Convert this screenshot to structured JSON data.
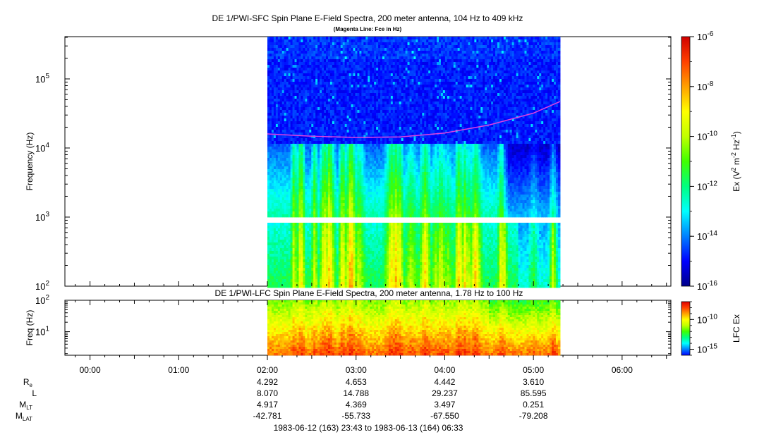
{
  "chart_data": [
    {
      "type": "heatmap",
      "title": "DE 1/PWI-SFC  Spin Plane E-Field Spectra, 200 meter antenna, 104 Hz to 409 kHz",
      "subtitle": "(Magenta Line: Fce in Hz)",
      "ylabel": "Frequency (Hz)",
      "y_scale": "log",
      "ylim": [
        100,
        409000
      ],
      "y_ticks": [
        {
          "value": 100,
          "base": "10",
          "exp": "2"
        },
        {
          "value": 1000,
          "base": "10",
          "exp": "3"
        },
        {
          "value": 10000,
          "base": "10",
          "exp": "4"
        },
        {
          "value": 100000,
          "base": "10",
          "exp": "5"
        }
      ],
      "data_time_range": [
        "02:00",
        "05:18"
      ],
      "fce_line": {
        "color": "#e040e0",
        "points": [
          {
            "t": "02:00",
            "f": 16000
          },
          {
            "t": "02:30",
            "f": 14800
          },
          {
            "t": "03:00",
            "f": 14200
          },
          {
            "t": "03:30",
            "f": 14500
          },
          {
            "t": "04:00",
            "f": 16500
          },
          {
            "t": "04:30",
            "f": 21500
          },
          {
            "t": "05:00",
            "f": 32000
          },
          {
            "t": "05:18",
            "f": 47000
          }
        ]
      },
      "colorbar": {
        "label_prefix": "Ex (V",
        "label_mid": " m",
        "label_mid2": " Hz",
        "label_suffix": ")",
        "sup1": "2",
        "sup2": "-2",
        "sup3": "-1",
        "scale": "log",
        "range": [
          1e-16,
          1e-06
        ],
        "ticks": [
          {
            "value": 1e-06,
            "base": "10",
            "exp": "-6"
          },
          {
            "value": 1e-08,
            "base": "10",
            "exp": "-8"
          },
          {
            "value": 1e-10,
            "base": "10",
            "exp": "-10"
          },
          {
            "value": 1e-12,
            "base": "10",
            "exp": "-12"
          },
          {
            "value": 1e-14,
            "base": "10",
            "exp": "-14"
          },
          {
            "value": 1e-16,
            "base": "10",
            "exp": "-16"
          }
        ],
        "colors": [
          "#00008a",
          "#0000ff",
          "#0080ff",
          "#00ffff",
          "#00ff80",
          "#40ff00",
          "#c0ff00",
          "#ffff00",
          "#ffa000",
          "#ff4000",
          "#d00000"
        ]
      }
    },
    {
      "type": "heatmap",
      "title": "DE 1/PWI-LFC  Spin Plane E-Field Spectra, 200 meter antenna, 1.78 Hz to 100 Hz",
      "ylabel": "Freq (Hz)",
      "y_scale": "log",
      "ylim": [
        1.78,
        100
      ],
      "y_ticks": [
        {
          "value": 10,
          "base": "10",
          "exp": "1"
        },
        {
          "value": 100,
          "base": "10",
          "exp": "2"
        }
      ],
      "data_time_range": [
        "02:00",
        "05:18"
      ],
      "colorbar": {
        "label": "LFC Ex",
        "scale": "log",
        "range": [
          1e-16,
          1e-07
        ],
        "ticks": [
          {
            "value": 1e-10,
            "base": "10",
            "exp": "-10"
          },
          {
            "value": 1e-15,
            "base": "10",
            "exp": "-15"
          }
        ],
        "colors": [
          "#0000ff",
          "#0080ff",
          "#00ffff",
          "#00ff80",
          "#40ff00",
          "#c0ff00",
          "#ffff00",
          "#ffa000",
          "#ff4000",
          "#e00000"
        ]
      }
    }
  ],
  "time_axis": {
    "start": "23:43",
    "end": "06:33",
    "ticks": [
      "00:00",
      "01:00",
      "02:00",
      "03:00",
      "04:00",
      "05:00",
      "06:00"
    ]
  },
  "ephemeris": {
    "rows": [
      {
        "label": "R",
        "sub": "e",
        "values": [
          "4.292",
          "4.653",
          "4.442",
          "3.610"
        ]
      },
      {
        "label": "L",
        "sub": "",
        "values": [
          "8.070",
          "14.788",
          "29.237",
          "85.595"
        ]
      },
      {
        "label": "M",
        "sub": "LT",
        "values": [
          "4.917",
          "4.369",
          "3.497",
          "0.251"
        ]
      },
      {
        "label": "M",
        "sub": "LAT",
        "values": [
          "-42.781",
          "-55.733",
          "-67.550",
          "-79.208"
        ]
      }
    ],
    "value_times": [
      "02:00",
      "03:00",
      "04:00",
      "05:00"
    ]
  },
  "footer": "1983-06-12 (163) 23:43 to 1983-06-13 (164) 06:33"
}
